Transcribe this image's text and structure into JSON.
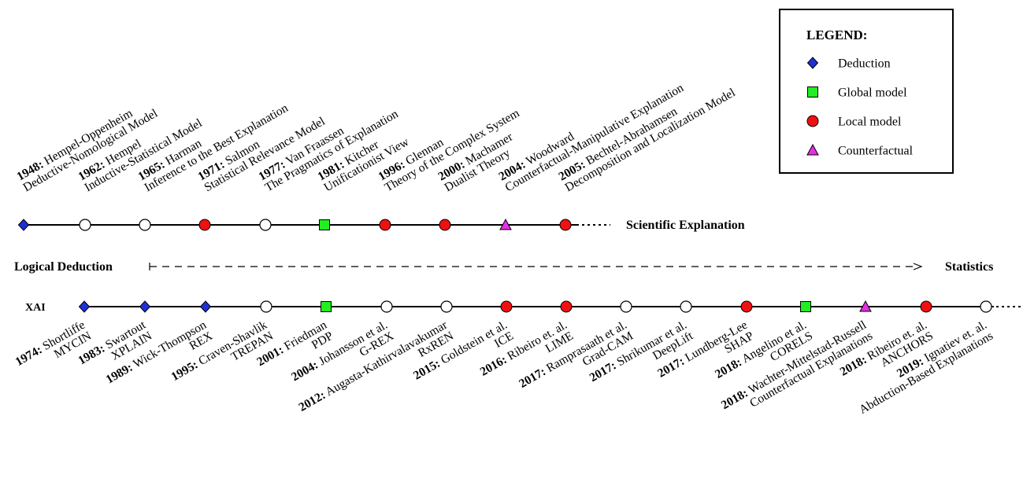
{
  "legend": {
    "title": "LEGEND:",
    "items": [
      {
        "shape": "diamond",
        "label": "Deduction",
        "color": "#1f2fd8"
      },
      {
        "shape": "square",
        "label": "Global model",
        "color": "#22ee22"
      },
      {
        "shape": "circle",
        "label": "Local model",
        "color": "#ee1111"
      },
      {
        "shape": "triangle",
        "label": "Counterfactual",
        "color": "#e62ee6"
      }
    ]
  },
  "axis": {
    "left": "Logical Deduction",
    "right": "Statistics"
  },
  "timelines": [
    {
      "id": "scientific",
      "label": "Scientific Explanation",
      "label_side": "right",
      "labels_side": "above",
      "events": [
        {
          "year": "1948:",
          "author": " Hempel-Oppenheim",
          "line2": "Deductive-Nomological Model",
          "shape": "diamond"
        },
        {
          "year": "1962:",
          "author": " Hempel",
          "line2": "Inductive-Statistical Model",
          "shape": "open"
        },
        {
          "year": "1965:",
          "author": " Harman",
          "line2": "Inference to the Best Explanation",
          "shape": "open"
        },
        {
          "year": "1971:",
          "author": " Salmon",
          "line2": "Statistical Relevance Model",
          "shape": "circle"
        },
        {
          "year": "1977:",
          "author": " Van Fraassen",
          "line2": "The Pragmatics of Explanation",
          "shape": "open"
        },
        {
          "year": "1981:",
          "author": " Kitcher",
          "line2": "Unificationist View",
          "shape": "square"
        },
        {
          "year": "1996:",
          "author": " Glennan",
          "line2": "Theory of the Complex System",
          "shape": "circle"
        },
        {
          "year": "2000:",
          "author": " Machamer",
          "line2": "Dualist Theory",
          "shape": "circle"
        },
        {
          "year": "2004:",
          "author": " Woodward",
          "line2": "Counterfactual-Manipulative Explanation",
          "shape": "triangle"
        },
        {
          "year": "2005:",
          "author": " Bechtel-Abrahamsen",
          "line2": "Decomposition and Localization Model",
          "shape": "circle"
        }
      ]
    },
    {
      "id": "xai",
      "label": "XAI",
      "label_side": "left",
      "labels_side": "below",
      "events": [
        {
          "year": "1974:",
          "author": " Shortliffe",
          "line2": "MYCIN",
          "shape": "diamond"
        },
        {
          "year": "1983:",
          "author": " Swartout",
          "line2": "XPLAIN",
          "shape": "diamond"
        },
        {
          "year": "1989:",
          "author": " Wick-Thompson",
          "line2": "REX",
          "shape": "diamond"
        },
        {
          "year": "1995:",
          "author": " Craven-Shavlik",
          "line2": "TREPAN",
          "shape": "open"
        },
        {
          "year": "2001:",
          "author": " Friedman",
          "line2": "PDP",
          "shape": "square"
        },
        {
          "year": "2004:",
          "author": " Johansson et al.",
          "line2": "G-REX",
          "shape": "open"
        },
        {
          "year": "2012:",
          "author": " Augasta-Kathirvalavakumar",
          "line2": "RxREN",
          "shape": "open"
        },
        {
          "year": "2015:",
          "author": " Goldstein et al.",
          "line2": "ICE",
          "shape": "circle"
        },
        {
          "year": "2016:",
          "author": " Ribeiro et. al.",
          "line2": "LIME",
          "shape": "circle"
        },
        {
          "year": "2017:",
          "author": " Ramprasaath et al.",
          "line2": "Grad-CAM",
          "shape": "open"
        },
        {
          "year": "2017:",
          "author": " Shrikumar et al.",
          "line2": "DeepLift",
          "shape": "open"
        },
        {
          "year": "2017:",
          "author": " Lundberg-Lee",
          "line2": "SHAP",
          "shape": "circle"
        },
        {
          "year": "2018:",
          "author": " Angelino et al.",
          "line2": "CORELS",
          "shape": "square"
        },
        {
          "year": "2018:",
          "author": " Wachter-Mittelstad-Russell",
          "line2": "Counterfactual Explanations",
          "shape": "triangle"
        },
        {
          "year": "2018:",
          "author": " Ribeiro et. al.",
          "line2": "ANCHORS",
          "shape": "circle"
        },
        {
          "year": "2019:",
          "author": " Ignatiev et. al.",
          "line2": "Abduction-Based Explanations",
          "shape": "open"
        }
      ]
    }
  ]
}
